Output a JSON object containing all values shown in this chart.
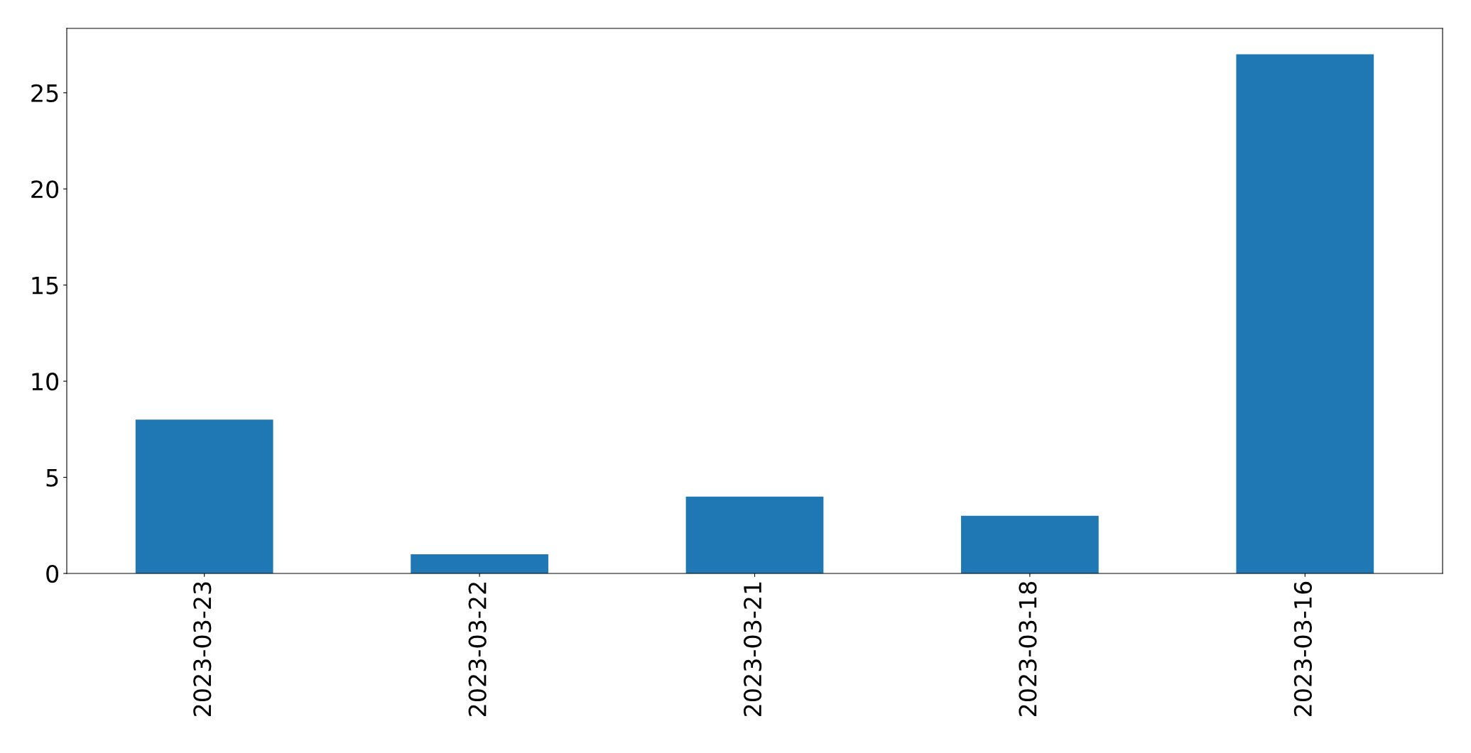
{
  "chart_data": {
    "type": "bar",
    "categories": [
      "2023-03-23",
      "2023-03-22",
      "2023-03-21",
      "2023-03-18",
      "2023-03-16"
    ],
    "values": [
      8,
      1,
      4,
      3,
      27
    ],
    "color": "#1f77b4",
    "ylim": [
      0,
      28.35
    ],
    "yticks": [
      0,
      5,
      10,
      15,
      20,
      25
    ],
    "grid": false,
    "legend": false
  }
}
